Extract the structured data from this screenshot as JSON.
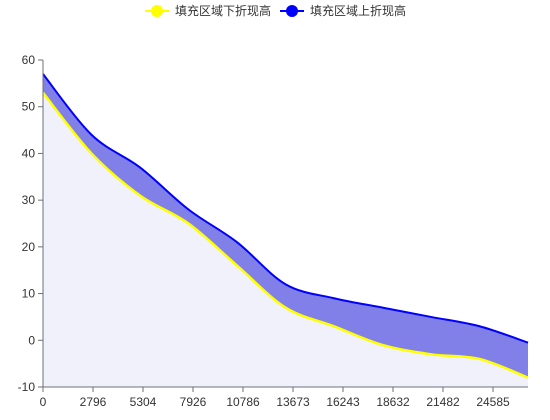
{
  "chart_data": {
    "type": "area",
    "title": "",
    "xlabel": "",
    "ylabel": "",
    "ylim": [
      -10,
      60
    ],
    "grid": false,
    "legend_position": "top-center",
    "x_tick_labels": [
      "0",
      "2796",
      "5304",
      "7926",
      "10786",
      "13673",
      "16243",
      "18632",
      "21482",
      "24585"
    ],
    "y_ticks": [
      -10,
      0,
      10,
      20,
      30,
      40,
      50,
      60
    ],
    "x": [
      0,
      1,
      2,
      3,
      4,
      5,
      6,
      7,
      8,
      9,
      10
    ],
    "series": [
      {
        "name": "填充区域下折现高",
        "color": "#ffff00",
        "values": [
          53,
          40,
          31,
          25,
          16,
          7,
          3,
          -1,
          -3,
          -4,
          -8
        ]
      },
      {
        "name": "填充区域上折现高",
        "color": "#0000ff",
        "values": [
          57,
          44,
          37,
          28,
          21,
          12,
          9,
          7,
          5,
          3,
          -0.5
        ]
      }
    ],
    "fill_below_color": "#f0f1fa",
    "fill_between_color": "#8080e8"
  }
}
